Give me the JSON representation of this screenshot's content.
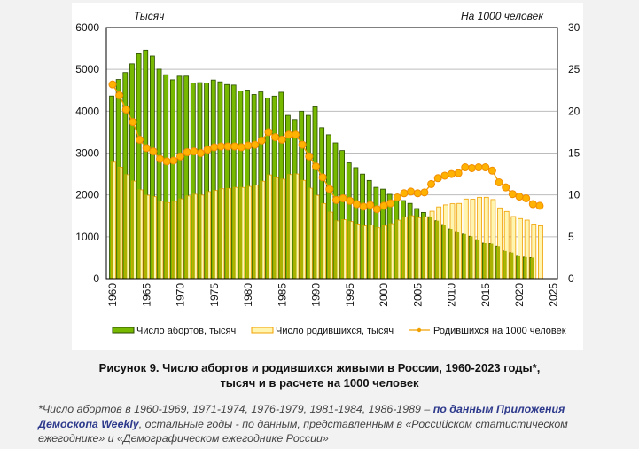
{
  "chart_data": {
    "type": "bar+line",
    "left_unit_label": "Тысяч",
    "right_unit_label": "На 1000 человек",
    "ylim_left": [
      0,
      6000
    ],
    "yticks_left": [
      "0",
      "1000",
      "2000",
      "3000",
      "4000",
      "5000",
      "6000"
    ],
    "ylim_right": [
      0,
      30
    ],
    "yticks_right": [
      "0",
      "5",
      "10",
      "15",
      "20",
      "25",
      "30"
    ],
    "xlim": [
      1960,
      2025
    ],
    "xticks": [
      "1960",
      "1965",
      "1970",
      "1975",
      "1980",
      "1985",
      "1990",
      "1995",
      "2000",
      "2005",
      "2010",
      "2015",
      "2020",
      "2025"
    ],
    "grid": "horizontal",
    "legend_position": "bottom",
    "series": [
      {
        "name": "Число абортов, тысяч",
        "type": "bar",
        "color": "#76b900",
        "x": [
          1960,
          1961,
          1962,
          1963,
          1964,
          1965,
          1966,
          1967,
          1968,
          1969,
          1970,
          1971,
          1972,
          1973,
          1974,
          1975,
          1976,
          1977,
          1978,
          1979,
          1980,
          1981,
          1982,
          1983,
          1984,
          1985,
          1986,
          1987,
          1988,
          1989,
          1990,
          1991,
          1992,
          1993,
          1994,
          1995,
          1996,
          1997,
          1998,
          1999,
          2000,
          2001,
          2002,
          2003,
          2004,
          2005,
          2006,
          2007,
          2008,
          2009,
          2010,
          2011,
          2012,
          2013,
          2014,
          2015,
          2016,
          2017,
          2018,
          2019,
          2020,
          2021,
          2022
        ],
        "values": [
          4363,
          4759,
          4925,
          5134,
          5376,
          5463,
          5322,
          5005,
          4872,
          4751,
          4838,
          4839,
          4672,
          4683,
          4674,
          4746,
          4703,
          4638,
          4625,
          4485,
          4506,
          4400,
          4462,
          4317,
          4361,
          4454,
          3900,
          3800,
          4000,
          3900,
          4103,
          3608,
          3437,
          3244,
          3061,
          2766,
          2652,
          2498,
          2346,
          2182,
          2139,
          2015,
          1945,
          1865,
          1798,
          1675,
          1582,
          1479,
          1385,
          1292,
          1186,
          1124,
          1064,
          1012,
          930,
          848,
          837,
          779,
          661,
          621,
          553,
          512,
          500
        ]
      },
      {
        "name": "Число родившихся, тысяч",
        "type": "bar",
        "color": "#fff4b0",
        "x": [
          1960,
          1961,
          1962,
          1963,
          1964,
          1965,
          1966,
          1967,
          1968,
          1969,
          1970,
          1971,
          1972,
          1973,
          1974,
          1975,
          1976,
          1977,
          1978,
          1979,
          1980,
          1981,
          1982,
          1983,
          1984,
          1985,
          1986,
          1987,
          1988,
          1989,
          1990,
          1991,
          1992,
          1993,
          1994,
          1995,
          1996,
          1997,
          1998,
          1999,
          2000,
          2001,
          2002,
          2003,
          2004,
          2005,
          2006,
          2007,
          2008,
          2009,
          2010,
          2011,
          2012,
          2013,
          2014,
          2015,
          2016,
          2017,
          2018,
          2019,
          2020,
          2021,
          2022,
          2023
        ],
        "values": [
          2782,
          2663,
          2482,
          2331,
          2121,
          1991,
          1957,
          1852,
          1817,
          1846,
          1904,
          1974,
          2015,
          1995,
          2079,
          2106,
          2147,
          2156,
          2179,
          2179,
          2203,
          2237,
          2328,
          2478,
          2410,
          2375,
          2486,
          2500,
          2348,
          2161,
          1989,
          1795,
          1588,
          1379,
          1408,
          1364,
          1305,
          1260,
          1283,
          1215,
          1267,
          1312,
          1397,
          1477,
          1502,
          1457,
          1479,
          1610,
          1714,
          1762,
          1789,
          1797,
          1902,
          1896,
          1943,
          1944,
          1889,
          1690,
          1605,
          1485,
          1436,
          1399,
          1305,
          1264
        ]
      },
      {
        "name": "Родившихся на 1000 человек",
        "type": "line",
        "color": "#f0a000",
        "x": [
          1960,
          1961,
          1962,
          1963,
          1964,
          1965,
          1966,
          1967,
          1968,
          1969,
          1970,
          1971,
          1972,
          1973,
          1974,
          1975,
          1976,
          1977,
          1978,
          1979,
          1980,
          1981,
          1982,
          1983,
          1984,
          1985,
          1986,
          1987,
          1988,
          1989,
          1990,
          1991,
          1992,
          1993,
          1994,
          1995,
          1996,
          1997,
          1998,
          1999,
          2000,
          2001,
          2002,
          2003,
          2004,
          2005,
          2006,
          2007,
          2008,
          2009,
          2010,
          2011,
          2012,
          2013,
          2014,
          2015,
          2016,
          2017,
          2018,
          2019,
          2020,
          2021,
          2022,
          2023
        ],
        "values": [
          23.2,
          21.9,
          20.2,
          18.7,
          16.6,
          15.6,
          15.2,
          14.3,
          14.0,
          14.1,
          14.6,
          15.1,
          15.2,
          15.0,
          15.4,
          15.7,
          15.8,
          15.8,
          15.8,
          15.7,
          15.9,
          16.0,
          16.5,
          17.5,
          16.9,
          16.6,
          17.2,
          17.2,
          16.0,
          14.6,
          13.4,
          12.1,
          10.7,
          9.4,
          9.6,
          9.3,
          8.9,
          8.6,
          8.8,
          8.3,
          8.7,
          9.0,
          9.7,
          10.2,
          10.4,
          10.2,
          10.3,
          11.3,
          12.0,
          12.3,
          12.5,
          12.6,
          13.3,
          13.2,
          13.3,
          13.3,
          12.9,
          11.5,
          10.9,
          10.1,
          9.8,
          9.6,
          8.9,
          8.7
        ]
      }
    ]
  },
  "caption": {
    "line1": "Рисунок 9. Число абортов и родившихся живыми в России, 1960-2023 годы*,",
    "line2": "тысяч и в расчете на 1000 человек"
  },
  "footnote": {
    "part1": "*Число абортов в 1960-1969, 1971-1974, 1976-1979, 1981-1984, 1986-1989 – ",
    "link": "по данным Приложения Демоскопа Weekly",
    "part2": ", остальные годы - по данным, представленным в «Российском статистическом ежегоднике» и «Демографическом ежегоднике России»"
  }
}
